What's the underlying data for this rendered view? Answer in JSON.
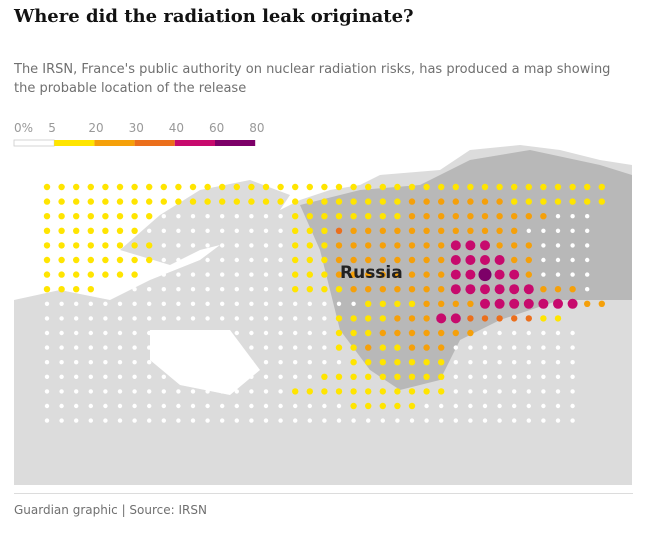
{
  "title": "Where did the radiation leak originate?",
  "subtitle": "The IRSN, France's public authority on nuclear radiation risks, has produced a map showing the probable location of the release",
  "legend": {
    "ticks": [
      {
        "value": 0,
        "label": "0%"
      },
      5,
      20,
      30,
      40,
      60,
      80
    ],
    "colors": [
      "#ffffff",
      "#ffe500",
      "#f5a00a",
      "#eb6f1c",
      "#c70a6d",
      "#7d0068"
    ]
  },
  "map": {
    "label": "Russia",
    "dot_levels": [
      "111111111111111111111111111111111111111",
      "111111111111111111111111122222221111111",
      "11111111.........111111112222222222...",
      "1111111..........1113222222222222.....",
      "11111111.........11122222222444222....",
      "11111111.........11122222222444422....",
      "1111111..........11122222222445442....",
      "1111.............11112222222444444222.",
      "......................11112222444444422222",
      "....................1111222443333311 ",
      "....................1112222222.......",
      "....................11211222.........",
      ".....................1111111.........",
      "...................111111111.........",
      ".................11111111111.........",
      ".....................11111...........",
      "....................................."
    ]
  },
  "source": "Guardian graphic | Source: IRSN"
}
